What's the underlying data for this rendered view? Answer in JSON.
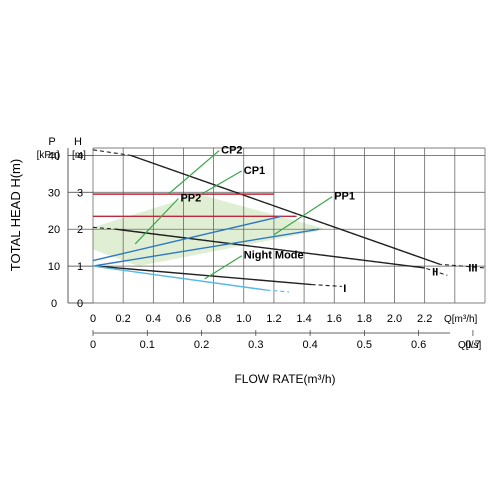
{
  "chart_data": {
    "type": "line",
    "ylabel": "TOTAL HEAD H(m)",
    "xlabel": "FLOW RATE(m³/h)",
    "p_axis": {
      "header": "P",
      "unit": "[kPa]",
      "ticks": [
        "0",
        "10",
        "20",
        "30",
        "40"
      ],
      "ratio_m_per_kpa": 0.1
    },
    "h_axis": {
      "header": "H",
      "unit": "[m]",
      "ticks": [
        "0",
        "1",
        "2",
        "3",
        "4"
      ],
      "ylim": [
        0,
        4.2
      ]
    },
    "x_axis": {
      "unit": "Q[m³/h]",
      "ticks": [
        "0",
        "0.2",
        "0.4",
        "0.6",
        "0.8",
        "1.0",
        "1.2",
        "1.4",
        "1.6",
        "1.8",
        "2.0",
        "2.2"
      ],
      "xlim": [
        0,
        2.6
      ]
    },
    "x_axis_ls": {
      "unit": "Q[l/s]",
      "ticks": [
        "0",
        "0.1",
        "0.2",
        "0.3",
        "0.4",
        "0.5",
        "0.6",
        "0.7"
      ],
      "ratio_m3h_per_ls": 3.6
    },
    "grid": true,
    "series": [
      {
        "name": "III",
        "color": "#222222",
        "solid": [
          [
            0.25,
            4.0
          ],
          [
            2.3,
            1.05
          ]
        ],
        "dashed": [
          [
            0,
            4.15
          ],
          [
            0.25,
            4.0
          ],
          [
            2.3,
            1.05
          ],
          [
            2.6,
            0.95
          ]
        ]
      },
      {
        "name": "II",
        "color": "#222222",
        "solid": [
          [
            0.15,
            2.0
          ],
          [
            2.2,
            0.95
          ]
        ],
        "dashed": [
          [
            0,
            2.05
          ],
          [
            0.15,
            2.0
          ],
          [
            2.2,
            0.95
          ],
          [
            2.35,
            0.75
          ]
        ]
      },
      {
        "name": "I",
        "color": "#222222",
        "solid": [
          [
            0.02,
            1.0
          ],
          [
            1.45,
            0.5
          ]
        ],
        "dashed": [
          [
            1.45,
            0.5
          ],
          [
            1.65,
            0.45
          ]
        ]
      },
      {
        "name": "CP2",
        "color": "#c0283c",
        "solid": [
          [
            0,
            2.95
          ],
          [
            1.2,
            2.95
          ]
        ]
      },
      {
        "name": "CP1",
        "color": "#c0283c",
        "solid": [
          [
            0,
            2.35
          ],
          [
            1.35,
            2.35
          ]
        ]
      },
      {
        "name": "PP2",
        "color": "#2e78c4",
        "solid": [
          [
            0,
            1.15
          ],
          [
            1.25,
            2.35
          ]
        ],
        "dashed": [
          [
            0,
            1.15
          ],
          [
            0.0,
            1.15
          ]
        ]
      },
      {
        "name": "PP1",
        "color": "#2e78c4",
        "solid": [
          [
            0,
            1.0
          ],
          [
            1.5,
            2.0
          ]
        ]
      },
      {
        "name": "Night Mode",
        "color": "#55b8e6",
        "solid": [
          [
            0,
            1.0
          ],
          [
            1.15,
            0.35
          ]
        ],
        "dashed": [
          [
            1.15,
            0.35
          ],
          [
            1.3,
            0.3
          ]
        ]
      }
    ],
    "annotations": [
      {
        "text": "CP2",
        "at": [
          0.85,
          4.05
        ],
        "tip": [
          0.5,
          2.95
        ]
      },
      {
        "text": "CP1",
        "at": [
          1.0,
          3.5
        ],
        "tip": [
          0.72,
          2.95
        ]
      },
      {
        "text": "PP2",
        "at": [
          0.58,
          2.75
        ],
        "tip": [
          0.28,
          1.6
        ]
      },
      {
        "text": "PP1",
        "at": [
          1.6,
          2.8
        ],
        "tip": [
          1.2,
          1.85
        ]
      },
      {
        "text": "Night Mode",
        "at": [
          1.0,
          1.2
        ],
        "tip": [
          0.74,
          0.65
        ]
      },
      {
        "text": "I",
        "at": [
          1.67,
          0.3
        ]
      },
      {
        "text": "II",
        "at": [
          2.27,
          0.75
        ]
      },
      {
        "text": "III",
        "at": [
          2.52,
          0.85
        ]
      }
    ]
  }
}
